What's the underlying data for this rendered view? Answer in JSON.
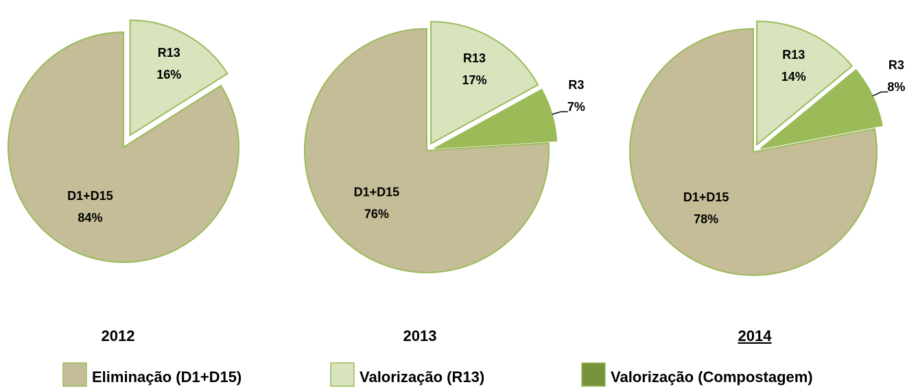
{
  "chart_data": [
    {
      "type": "pie",
      "title": "2012",
      "categories": [
        "R13",
        "D1+D15"
      ],
      "values": [
        16,
        84
      ],
      "value_labels": [
        "16%",
        "84%"
      ],
      "colors": [
        "#d7e4bd",
        "#c4bd97"
      ]
    },
    {
      "type": "pie",
      "title": "2013",
      "categories": [
        "R13",
        "R3",
        "D1+D15"
      ],
      "values": [
        17,
        7,
        76
      ],
      "value_labels": [
        "17%",
        "7%",
        "76%"
      ],
      "colors": [
        "#d7e4bd",
        "#9bbb59",
        "#c4bd97"
      ]
    },
    {
      "type": "pie",
      "title": "2014",
      "title_underline": true,
      "categories": [
        "R13",
        "R3",
        "D1+D15"
      ],
      "values": [
        14,
        8,
        78
      ],
      "value_labels": [
        "14%",
        "8%",
        "78%"
      ],
      "colors": [
        "#d7e4bd",
        "#9bbb59",
        "#c4bd97"
      ]
    }
  ],
  "legend": [
    {
      "name": "Eliminação (D1+D15)",
      "color": "#c4bd97"
    },
    {
      "name": "Valorização (R13)",
      "color": "#d7e4bd"
    },
    {
      "name": "Valorização (Compostagem)",
      "color": "#77933c"
    }
  ]
}
